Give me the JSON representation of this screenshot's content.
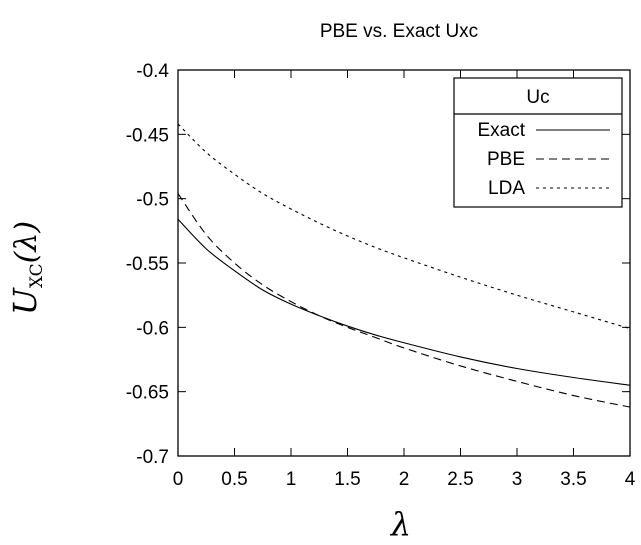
{
  "chart_data": {
    "type": "line",
    "title": "PBE vs. Exact Uxc",
    "xlabel": "λ",
    "ylabel": {
      "main": "U",
      "subscript": "XC",
      "argument": "(λ)"
    },
    "xlim": [
      0,
      4
    ],
    "ylim": [
      -0.7,
      -0.4
    ],
    "x_ticks": [
      "0",
      "0.5",
      "1",
      "1.5",
      "2",
      "2.5",
      "3",
      "3.5",
      "4"
    ],
    "y_ticks": [
      "-0.4",
      "-0.45",
      "-0.5",
      "-0.55",
      "-0.6",
      "-0.65",
      "-0.7"
    ],
    "grid": false,
    "legend": {
      "title": "Uc",
      "placement": "top-right"
    },
    "series": [
      {
        "name": "Exact",
        "style": "solid",
        "x": [
          0,
          0.25,
          0.5,
          0.75,
          1,
          1.25,
          1.5,
          1.75,
          2,
          2.5,
          3,
          3.5,
          4
        ],
        "y": [
          -0.516,
          -0.539,
          -0.556,
          -0.571,
          -0.582,
          -0.591,
          -0.599,
          -0.606,
          -0.612,
          -0.623,
          -0.632,
          -0.639,
          -0.645
        ]
      },
      {
        "name": "PBE",
        "style": "dashed",
        "x": [
          0,
          0.25,
          0.5,
          0.75,
          1,
          1.25,
          1.5,
          1.75,
          2,
          2.5,
          3,
          3.5,
          4
        ],
        "y": [
          -0.496,
          -0.528,
          -0.55,
          -0.567,
          -0.58,
          -0.591,
          -0.6,
          -0.608,
          -0.616,
          -0.63,
          -0.642,
          -0.653,
          -0.662
        ]
      },
      {
        "name": "LDA",
        "style": "dotted",
        "x": [
          0,
          0.25,
          0.5,
          0.75,
          1,
          1.25,
          1.5,
          1.75,
          2,
          2.5,
          3,
          3.5,
          4
        ],
        "y": [
          -0.442,
          -0.464,
          -0.481,
          -0.496,
          -0.508,
          -0.519,
          -0.529,
          -0.538,
          -0.546,
          -0.561,
          -0.575,
          -0.588,
          -0.601
        ]
      }
    ]
  }
}
